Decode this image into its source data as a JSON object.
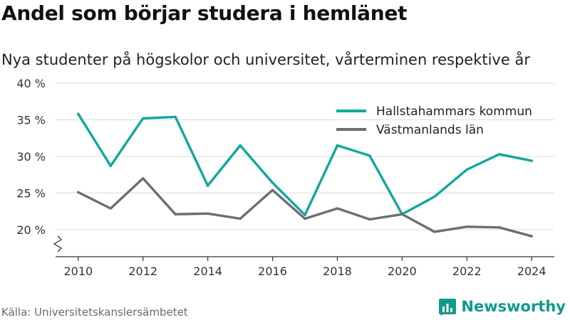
{
  "title": "Andel som börjar studera i hemlänet",
  "subtitle": "Nya studenter på högskolor och universitet, vårterminen respektive år",
  "source": "Källa: Universitetskanslersämbetet",
  "brand": "Newsworthy",
  "colors": {
    "hallstahammar": "#11a89a",
    "vastmanland": "#6d6e71",
    "grid": "#dcdcdc",
    "axis": "#333333",
    "brand": "#119a8c"
  },
  "chart_data": {
    "type": "line",
    "x": [
      2010,
      2011,
      2012,
      2013,
      2014,
      2015,
      2016,
      2017,
      2018,
      2019,
      2020,
      2021,
      2022,
      2023,
      2024
    ],
    "series": [
      {
        "name": "Hallstahammars kommun",
        "values": [
          35.8,
          28.7,
          35.2,
          35.4,
          26.0,
          31.5,
          26.4,
          22.0,
          31.5,
          30.1,
          22.1,
          24.5,
          28.2,
          30.3,
          29.4
        ]
      },
      {
        "name": "Västmanlands län",
        "values": [
          25.1,
          22.9,
          27.0,
          22.1,
          22.2,
          21.5,
          25.4,
          21.5,
          22.9,
          21.4,
          22.1,
          19.7,
          20.4,
          20.3,
          19.1
        ]
      }
    ],
    "yticks": [
      20,
      25,
      30,
      35,
      40
    ],
    "ytick_labels": [
      "20 %",
      "25 %",
      "30 %",
      "35 %",
      "40 %"
    ],
    "xticks": [
      2010,
      2012,
      2014,
      2016,
      2018,
      2020,
      2022,
      2024
    ],
    "xtick_labels": [
      "2010",
      "2012",
      "2014",
      "2016",
      "2018",
      "2020",
      "2022",
      "2024"
    ],
    "ylim": [
      16.3,
      40
    ],
    "xlim": [
      2009.3,
      2024.7
    ],
    "axis_break": true,
    "grid": true,
    "legend_position": "top-right"
  }
}
